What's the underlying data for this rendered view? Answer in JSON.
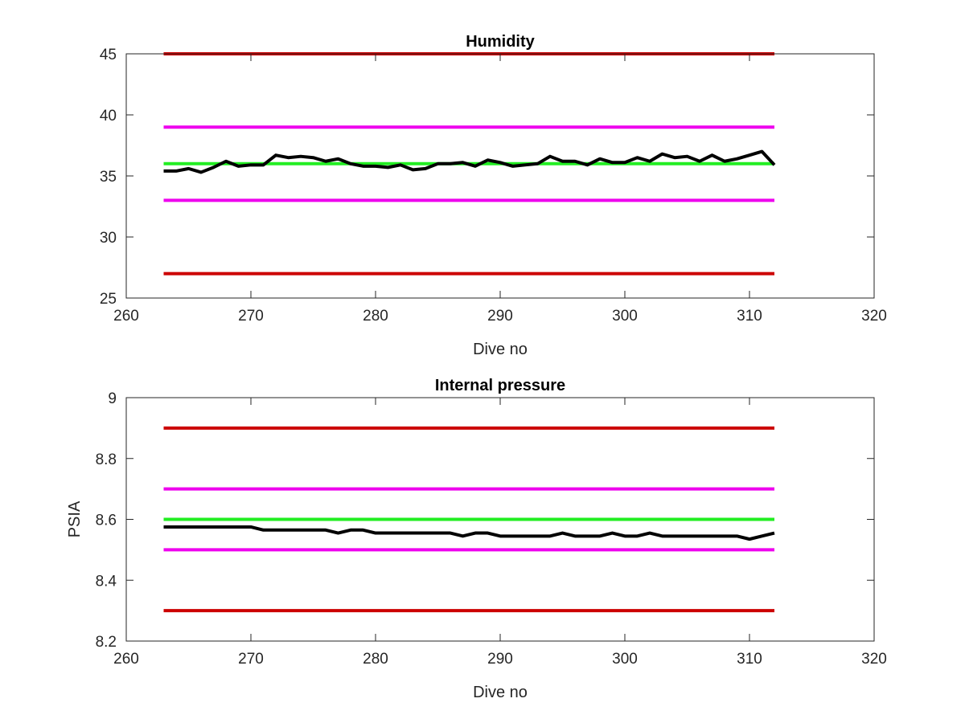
{
  "chart_data": [
    {
      "type": "line",
      "title": "Humidity",
      "xlabel": "Dive no",
      "ylabel": "",
      "xlim": [
        260,
        320
      ],
      "ylim": [
        25,
        45
      ],
      "xticks": [
        260,
        270,
        280,
        290,
        300,
        310,
        320
      ],
      "yticks": [
        25,
        30,
        35,
        40,
        45
      ],
      "grid": false,
      "reference_lines": [
        {
          "y": 45,
          "x_range": [
            263,
            312
          ],
          "color": "#cc0000"
        },
        {
          "y": 39,
          "x_range": [
            263,
            312
          ],
          "color": "#ee00ee"
        },
        {
          "y": 36,
          "x_range": [
            263,
            312
          ],
          "color": "#22ee22"
        },
        {
          "y": 33,
          "x_range": [
            263,
            312
          ],
          "color": "#ee00ee"
        },
        {
          "y": 27,
          "x_range": [
            263,
            312
          ],
          "color": "#cc0000"
        }
      ],
      "series": [
        {
          "color": "#000000",
          "x": [
            263,
            264,
            265,
            266,
            267,
            268,
            269,
            270,
            271,
            272,
            273,
            274,
            275,
            276,
            277,
            278,
            279,
            280,
            281,
            282,
            283,
            284,
            285,
            286,
            287,
            288,
            289,
            290,
            291,
            292,
            293,
            294,
            295,
            296,
            297,
            298,
            299,
            300,
            301,
            302,
            303,
            304,
            305,
            306,
            307,
            308,
            309,
            310,
            311,
            312
          ],
          "values": [
            35.4,
            35.4,
            35.6,
            35.3,
            35.7,
            36.2,
            35.8,
            35.9,
            35.9,
            36.7,
            36.5,
            36.6,
            36.5,
            36.2,
            36.4,
            36.0,
            35.8,
            35.8,
            35.7,
            35.9,
            35.5,
            35.6,
            36.0,
            36.0,
            36.1,
            35.8,
            36.3,
            36.1,
            35.8,
            35.9,
            36.0,
            36.6,
            36.2,
            36.2,
            35.9,
            36.4,
            36.1,
            36.1,
            36.5,
            36.2,
            36.8,
            36.5,
            36.6,
            36.2,
            36.7,
            36.2,
            36.4,
            36.7,
            37.0,
            35.9
          ]
        }
      ]
    },
    {
      "type": "line",
      "title": "Internal pressure",
      "xlabel": "Dive no",
      "ylabel": "PSIA",
      "xlim": [
        260,
        320
      ],
      "ylim": [
        8.2,
        9
      ],
      "xticks": [
        260,
        270,
        280,
        290,
        300,
        310,
        320
      ],
      "yticks": [
        8.2,
        8.4,
        8.6,
        8.8,
        9
      ],
      "ytick_labels": [
        "8.2",
        "8.4",
        "8.6",
        "8.8",
        "9"
      ],
      "grid": false,
      "reference_lines": [
        {
          "y": 8.9,
          "x_range": [
            263,
            312
          ],
          "color": "#cc0000"
        },
        {
          "y": 8.7,
          "x_range": [
            263,
            312
          ],
          "color": "#ee00ee"
        },
        {
          "y": 8.6,
          "x_range": [
            263,
            312
          ],
          "color": "#22ee22"
        },
        {
          "y": 8.5,
          "x_range": [
            263,
            312
          ],
          "color": "#ee00ee"
        },
        {
          "y": 8.3,
          "x_range": [
            263,
            312
          ],
          "color": "#cc0000"
        }
      ],
      "series": [
        {
          "color": "#000000",
          "x": [
            263,
            264,
            265,
            266,
            267,
            268,
            269,
            270,
            271,
            272,
            273,
            274,
            275,
            276,
            277,
            278,
            279,
            280,
            281,
            282,
            283,
            284,
            285,
            286,
            287,
            288,
            289,
            290,
            291,
            292,
            293,
            294,
            295,
            296,
            297,
            298,
            299,
            300,
            301,
            302,
            303,
            304,
            305,
            306,
            307,
            308,
            309,
            310,
            311,
            312
          ],
          "values": [
            8.575,
            8.575,
            8.575,
            8.575,
            8.575,
            8.575,
            8.575,
            8.575,
            8.565,
            8.565,
            8.565,
            8.565,
            8.565,
            8.565,
            8.555,
            8.565,
            8.565,
            8.555,
            8.555,
            8.555,
            8.555,
            8.555,
            8.555,
            8.555,
            8.545,
            8.555,
            8.555,
            8.545,
            8.545,
            8.545,
            8.545,
            8.545,
            8.555,
            8.545,
            8.545,
            8.545,
            8.555,
            8.545,
            8.545,
            8.555,
            8.545,
            8.545,
            8.545,
            8.545,
            8.545,
            8.545,
            8.545,
            8.535,
            8.545,
            8.555
          ]
        }
      ]
    }
  ]
}
